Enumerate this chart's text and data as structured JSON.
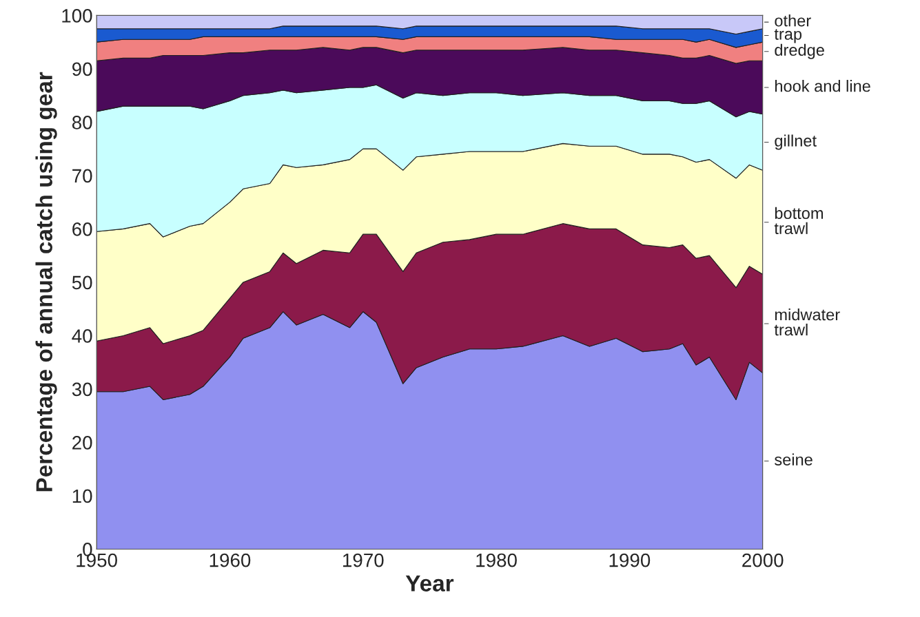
{
  "chart_data": {
    "type": "area",
    "stacked": true,
    "xlabel": "Year",
    "ylabel": "Percentage of annual catch using gear",
    "x": [
      1950,
      1952,
      1954,
      1955,
      1957,
      1958,
      1960,
      1961,
      1963,
      1964,
      1965,
      1967,
      1969,
      1970,
      1971,
      1973,
      1974,
      1976,
      1978,
      1980,
      1982,
      1985,
      1987,
      1989,
      1991,
      1993,
      1994,
      1995,
      1996,
      1998,
      1999,
      2000
    ],
    "series": [
      {
        "name": "seine",
        "color": "#9090f0",
        "values": [
          29.5,
          29.5,
          30.5,
          28,
          29,
          30.5,
          36,
          39.5,
          41.5,
          44.5,
          42,
          44,
          41.5,
          44.5,
          42.5,
          31,
          34,
          36,
          37.5,
          37.5,
          38,
          40,
          38,
          39.5,
          37,
          37.5,
          38.5,
          34.5,
          36,
          28,
          35,
          33
        ]
      },
      {
        "name": "midwater\ntrawl",
        "color": "#8b1a4a",
        "values": [
          9.5,
          10.5,
          11,
          10.5,
          11,
          10.5,
          11,
          10.5,
          10.5,
          11,
          11.5,
          12,
          14,
          14.5,
          16.5,
          21,
          21.5,
          21.5,
          20.5,
          21.5,
          21,
          21,
          22,
          20.5,
          20,
          19,
          18.5,
          20,
          19,
          21,
          18,
          18.5
        ]
      },
      {
        "name": "bottom\ntrawl",
        "color": "#ffffc8",
        "values": [
          20.5,
          20,
          19.5,
          20,
          20.5,
          20,
          18,
          17.5,
          16.5,
          16.5,
          18,
          16,
          17.5,
          16,
          16,
          19,
          18,
          16.5,
          16.5,
          15.5,
          15.5,
          15,
          15.5,
          15.5,
          17,
          17.5,
          16.5,
          18,
          18,
          20.5,
          19,
          19.5
        ]
      },
      {
        "name": "gillnet",
        "color": "#c8ffff",
        "values": [
          22.5,
          23,
          22,
          24.5,
          22.5,
          21.5,
          19,
          17.5,
          17,
          14,
          14,
          14,
          13.5,
          11.5,
          12,
          13.5,
          12,
          11,
          11,
          11,
          10.5,
          9.5,
          9.5,
          9.5,
          10,
          10,
          10,
          11,
          11,
          11.5,
          10,
          10.5
        ]
      },
      {
        "name": "hook and line",
        "color": "#4b0a5a",
        "values": [
          9.5,
          9,
          9,
          9.5,
          9.5,
          10,
          9,
          8,
          8,
          7.5,
          8,
          8,
          7,
          7.5,
          7,
          8.5,
          8,
          8.5,
          8,
          8,
          8.5,
          8.5,
          8.5,
          8.5,
          9,
          8.5,
          8.5,
          8.5,
          8.5,
          10,
          9.5,
          10
        ]
      },
      {
        "name": "dredge",
        "color": "#f08080",
        "values": [
          3.5,
          3.5,
          3.5,
          3,
          3,
          3.5,
          3,
          3,
          2.5,
          2.5,
          2.5,
          2,
          2.5,
          2,
          2,
          2.5,
          2.5,
          2.5,
          2.5,
          2.5,
          2.5,
          2,
          2.5,
          2,
          2.5,
          3,
          3.5,
          3,
          3,
          3,
          3,
          3.5
        ]
      },
      {
        "name": "trap",
        "color": "#1a5ad0",
        "values": [
          2.5,
          2,
          2,
          2,
          2,
          1.5,
          1.5,
          1.5,
          1.5,
          2,
          2,
          2,
          2,
          2,
          2,
          2,
          2,
          2,
          2,
          2,
          2,
          2,
          2,
          2.5,
          2,
          2,
          2,
          2.5,
          2,
          2.5,
          2.5,
          2.5
        ]
      },
      {
        "name": "other",
        "color": "#c8c8f8",
        "values": [
          2.5,
          2.5,
          2.5,
          2.5,
          2.5,
          2.5,
          2.5,
          2.5,
          2.5,
          2,
          2,
          2,
          2,
          2,
          2,
          2.5,
          2,
          2,
          2,
          2,
          2,
          2,
          2,
          2,
          2.5,
          2.5,
          2.5,
          2.5,
          2.5,
          3.5,
          3,
          2.5
        ]
      }
    ],
    "xlim": [
      1950,
      2000
    ],
    "xticks": [
      1950,
      1960,
      1970,
      1980,
      1990,
      2000
    ],
    "ylim": [
      0,
      100
    ],
    "yticks": [
      0,
      10,
      20,
      30,
      40,
      50,
      60,
      70,
      80,
      90,
      100
    ],
    "legend": false
  }
}
